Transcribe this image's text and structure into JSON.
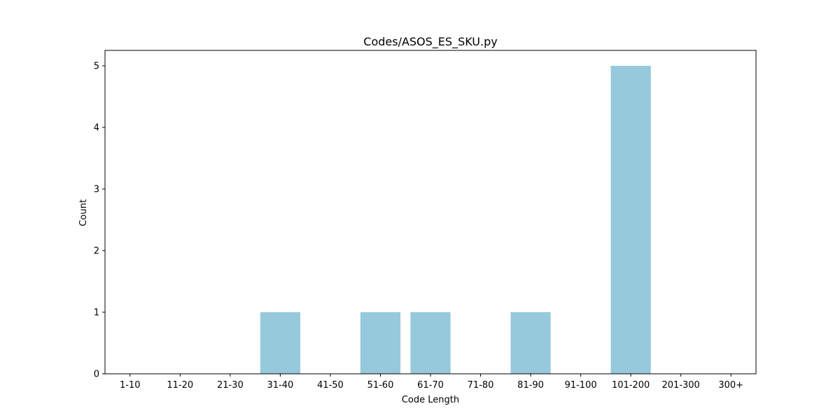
{
  "chart_data": {
    "type": "bar",
    "title": "Codes/ASOS_ES_SKU.py",
    "xlabel": "Code Length",
    "ylabel": "Count",
    "categories": [
      "1-10",
      "11-20",
      "21-30",
      "31-40",
      "41-50",
      "51-60",
      "61-70",
      "71-80",
      "81-90",
      "91-100",
      "101-200",
      "201-300",
      "300+"
    ],
    "values": [
      0,
      0,
      0,
      1,
      0,
      1,
      1,
      0,
      1,
      0,
      5,
      0,
      0
    ],
    "yticks": [
      0,
      1,
      2,
      3,
      4,
      5
    ],
    "ylim": [
      0,
      5.25
    ],
    "grid": false,
    "bar_color": "#96c9dc"
  }
}
